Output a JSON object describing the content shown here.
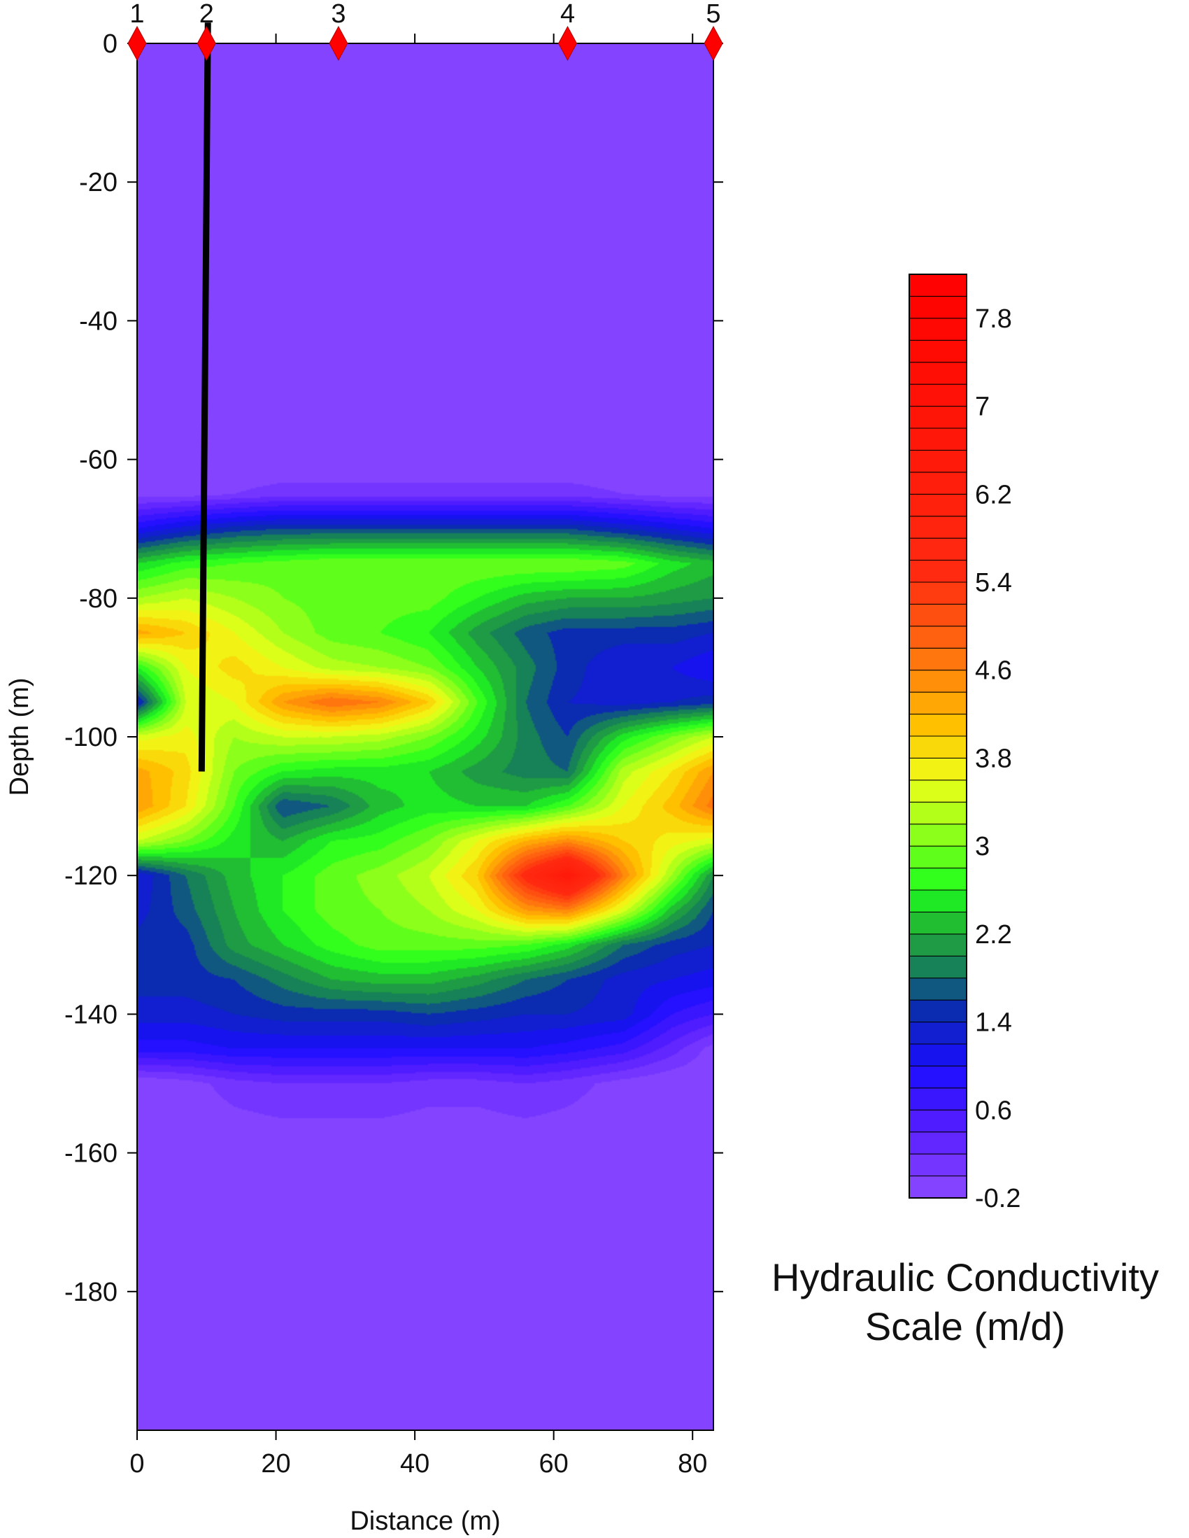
{
  "chart_data": {
    "type": "heatmap",
    "title": "",
    "xlabel": "Distance (m)",
    "ylabel": "Depth (m)",
    "xlim": [
      0,
      83
    ],
    "ylim": [
      -200,
      0
    ],
    "x_ticks": [
      0,
      20,
      40,
      60,
      80
    ],
    "x_tick_labels": [
      "0",
      "20",
      "40",
      "60",
      "80"
    ],
    "y_ticks": [
      0,
      -20,
      -40,
      -60,
      -80,
      -100,
      -120,
      -140,
      -160,
      -180
    ],
    "y_tick_labels": [
      "0",
      "-20",
      "-40",
      "-60",
      "-80",
      "-100",
      "-120",
      "-140",
      "-160",
      "-180"
    ],
    "grid": false,
    "stations": [
      {
        "label": "1",
        "x": 0
      },
      {
        "label": "2",
        "x": 10
      },
      {
        "label": "3",
        "x": 29
      },
      {
        "label": "4",
        "x": 62
      },
      {
        "label": "5",
        "x": 83
      }
    ],
    "borehole": {
      "x_top": 10.2,
      "depth_top": 3,
      "x_bottom": 9.3,
      "depth_bottom": -105
    },
    "colorbar": {
      "title_line1": "Hydraulic Conductivity",
      "title_line2": "Scale (m/d)",
      "min": -0.2,
      "max": 8.2,
      "step": 0.2,
      "tick_values": [
        7.8,
        7,
        6.2,
        5.4,
        4.6,
        3.8,
        3,
        2.2,
        1.4,
        0.6,
        -0.2
      ],
      "tick_labels": [
        "7.8",
        "7",
        "6.2",
        "5.4",
        "4.6",
        "3.8",
        "3",
        "2.2",
        "1.4",
        "0.6",
        "-0.2"
      ],
      "color_stops": [
        {
          "v": -0.2,
          "c": "#8c4bff"
        },
        {
          "v": 0.4,
          "c": "#5a1fff"
        },
        {
          "v": 1.0,
          "c": "#1a0dff"
        },
        {
          "v": 1.5,
          "c": "#0b2bb0"
        },
        {
          "v": 1.85,
          "c": "#157a5c"
        },
        {
          "v": 2.2,
          "c": "#22a83a"
        },
        {
          "v": 2.6,
          "c": "#1cff1c"
        },
        {
          "v": 3.1,
          "c": "#8cff1a"
        },
        {
          "v": 3.6,
          "c": "#f0ff1a"
        },
        {
          "v": 4.1,
          "c": "#ffc000"
        },
        {
          "v": 4.8,
          "c": "#ff6a10"
        },
        {
          "v": 5.5,
          "c": "#ff2a10"
        },
        {
          "v": 8.2,
          "c": "#ff0000"
        }
      ]
    },
    "grid_data": {
      "x": [
        0,
        7,
        14,
        21,
        28,
        35,
        42,
        49,
        56,
        62,
        70,
        77,
        83
      ],
      "depth": [
        0,
        -20,
        -40,
        -60,
        -65,
        -70,
        -75,
        -80,
        -85,
        -90,
        -95,
        -100,
        -105,
        -110,
        -115,
        -120,
        -125,
        -130,
        -135,
        -140,
        -145,
        -150,
        -160,
        -180,
        -200
      ],
      "values": [
        [
          -0.2,
          -0.2,
          -0.2,
          -0.2,
          -0.2,
          -0.2,
          -0.2,
          -0.2,
          -0.2,
          -0.2,
          -0.2,
          -0.2,
          -0.2
        ],
        [
          -0.2,
          -0.2,
          -0.2,
          -0.2,
          -0.2,
          -0.2,
          -0.2,
          -0.2,
          -0.2,
          -0.2,
          -0.2,
          -0.2,
          -0.2
        ],
        [
          -0.2,
          -0.2,
          -0.2,
          -0.2,
          -0.2,
          -0.2,
          -0.2,
          -0.2,
          -0.2,
          -0.2,
          -0.2,
          -0.2,
          -0.2
        ],
        [
          -0.2,
          -0.2,
          -0.2,
          -0.2,
          -0.2,
          -0.2,
          -0.2,
          -0.2,
          -0.2,
          -0.2,
          -0.2,
          -0.2,
          -0.2
        ],
        [
          -0.1,
          -0.1,
          0.0,
          0.1,
          0.1,
          0.1,
          0.1,
          0.1,
          0.1,
          0.1,
          0.0,
          -0.1,
          -0.1
        ],
        [
          1.0,
          1.3,
          1.5,
          1.6,
          1.6,
          1.6,
          1.6,
          1.6,
          1.6,
          1.6,
          1.4,
          1.2,
          1.0
        ],
        [
          2.4,
          2.7,
          2.8,
          2.9,
          3.0,
          3.0,
          3.0,
          3.0,
          3.0,
          3.0,
          2.9,
          2.5,
          2.3
        ],
        [
          3.2,
          3.4,
          3.2,
          3.0,
          2.9,
          2.9,
          2.9,
          2.6,
          2.3,
          2.2,
          2.2,
          2.1,
          2.0
        ],
        [
          4.3,
          4.0,
          3.6,
          3.2,
          2.9,
          2.8,
          2.6,
          2.1,
          1.7,
          1.5,
          1.5,
          1.5,
          1.4
        ],
        [
          2.6,
          3.6,
          3.9,
          3.6,
          3.3,
          3.2,
          3.0,
          2.4,
          1.9,
          1.5,
          1.2,
          1.2,
          1.0
        ],
        [
          1.3,
          3.4,
          3.6,
          4.4,
          4.8,
          4.6,
          4.0,
          2.8,
          1.8,
          1.4,
          1.3,
          1.4,
          1.5
        ],
        [
          3.5,
          3.7,
          3.2,
          3.4,
          3.4,
          3.3,
          3.0,
          2.5,
          1.9,
          1.6,
          2.5,
          3.0,
          3.4
        ],
        [
          4.3,
          3.9,
          3.0,
          2.6,
          2.5,
          2.5,
          2.4,
          2.1,
          1.9,
          1.8,
          3.3,
          3.8,
          4.4
        ],
        [
          4.4,
          3.8,
          2.8,
          1.6,
          1.8,
          2.3,
          2.5,
          2.4,
          2.4,
          2.8,
          3.6,
          4.1,
          4.7
        ],
        [
          3.4,
          3.0,
          2.5,
          2.2,
          2.6,
          2.7,
          3.0,
          3.6,
          4.2,
          4.5,
          4.0,
          3.7,
          3.5
        ],
        [
          1.2,
          1.8,
          2.3,
          2.6,
          2.9,
          3.1,
          3.4,
          4.0,
          5.6,
          6.6,
          4.6,
          3.2,
          2.0
        ],
        [
          1.3,
          1.7,
          2.2,
          2.6,
          2.9,
          3.0,
          3.2,
          3.6,
          4.4,
          4.6,
          3.5,
          2.3,
          1.6
        ],
        [
          1.5,
          1.5,
          2.1,
          2.4,
          2.7,
          2.9,
          2.9,
          2.9,
          2.8,
          2.5,
          1.8,
          1.5,
          1.4
        ],
        [
          1.5,
          1.5,
          1.6,
          1.9,
          2.2,
          2.3,
          2.3,
          2.1,
          1.8,
          1.6,
          1.3,
          1.2,
          1.1
        ],
        [
          1.3,
          1.3,
          1.4,
          1.5,
          1.5,
          1.5,
          1.6,
          1.5,
          1.4,
          1.4,
          1.3,
          0.8,
          0.6
        ],
        [
          0.9,
          0.9,
          1.0,
          1.0,
          1.0,
          1.0,
          1.0,
          1.0,
          1.0,
          0.9,
          0.7,
          0.3,
          -0.1
        ],
        [
          -0.2,
          -0.1,
          0.1,
          0.2,
          0.2,
          0.2,
          0.1,
          0.1,
          0.2,
          0.1,
          -0.1,
          -0.2,
          -0.2
        ],
        [
          -0.2,
          -0.2,
          -0.2,
          -0.2,
          -0.2,
          -0.2,
          -0.2,
          -0.2,
          -0.2,
          -0.2,
          -0.2,
          -0.2,
          -0.2
        ],
        [
          -0.2,
          -0.2,
          -0.2,
          -0.2,
          -0.2,
          -0.2,
          -0.2,
          -0.2,
          -0.2,
          -0.2,
          -0.2,
          -0.2,
          -0.2
        ],
        [
          -0.2,
          -0.2,
          -0.2,
          -0.2,
          -0.2,
          -0.2,
          -0.2,
          -0.2,
          -0.2,
          -0.2,
          -0.2,
          -0.2,
          -0.2
        ]
      ]
    }
  }
}
